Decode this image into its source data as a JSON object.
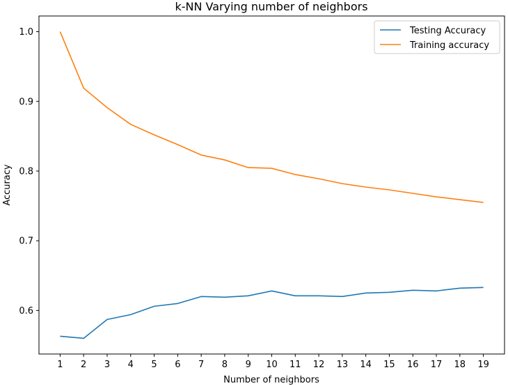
{
  "chart_data": {
    "type": "line",
    "title": "k-NN Varying number of neighbors",
    "xlabel": "Number of neighbors",
    "ylabel": "Accuracy",
    "x": [
      1,
      2,
      3,
      4,
      5,
      6,
      7,
      8,
      9,
      10,
      11,
      12,
      13,
      14,
      15,
      16,
      17,
      18,
      19
    ],
    "xlim": [
      0.1,
      19.9
    ],
    "ylim": [
      0.5375,
      1.0225
    ],
    "yticks": [
      "0.6",
      "0.7",
      "0.8",
      "0.9",
      "1.0"
    ],
    "ytick_values": [
      0.6,
      0.7,
      0.8,
      0.9,
      1.0
    ],
    "grid": false,
    "legend_position": "top-right",
    "series": [
      {
        "name": "Testing Accuracy",
        "color": "#1f77b4",
        "values": [
          0.563,
          0.56,
          0.587,
          0.594,
          0.606,
          0.61,
          0.62,
          0.619,
          0.621,
          0.628,
          0.621,
          0.621,
          0.62,
          0.625,
          0.626,
          0.629,
          0.628,
          0.632,
          0.633
        ]
      },
      {
        "name": "Training accuracy",
        "color": "#ff7f0e",
        "values": [
          1.0,
          0.919,
          0.891,
          0.867,
          0.852,
          0.838,
          0.823,
          0.816,
          0.805,
          0.804,
          0.795,
          0.789,
          0.782,
          0.777,
          0.773,
          0.768,
          0.763,
          0.759,
          0.755
        ]
      }
    ]
  }
}
